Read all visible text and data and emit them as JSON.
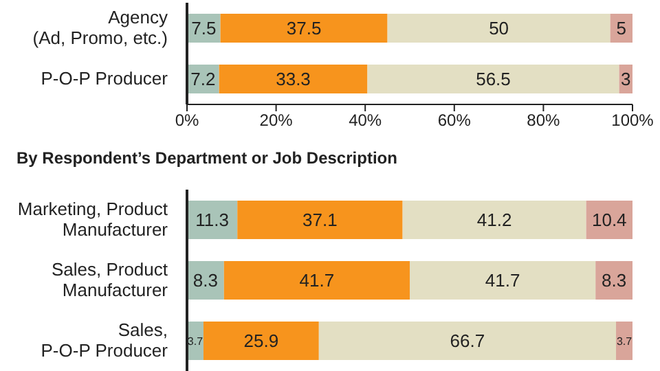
{
  "chart_data": [
    {
      "type": "bar",
      "orientation": "horizontal",
      "stacked": true,
      "data_labels": true,
      "grid": false,
      "legend": false,
      "categories": [
        "Agency\n(Ad, Promo, etc.)",
        "P-O-P Producer"
      ],
      "series": [
        {
          "color": "#a9c4b8",
          "values": [
            7.5,
            7.2
          ]
        },
        {
          "color": "#f7941d",
          "values": [
            37.5,
            33.3
          ]
        },
        {
          "color": "#e3dfc3",
          "values": [
            50,
            56.5
          ]
        },
        {
          "color": "#d9a59a",
          "values": [
            5,
            3
          ]
        }
      ],
      "xlim": [
        0,
        100
      ],
      "xticks": [
        {
          "value": 0,
          "label": "0%"
        },
        {
          "value": 20,
          "label": "20%"
        },
        {
          "value": 40,
          "label": "40%"
        },
        {
          "value": 60,
          "label": "60%"
        },
        {
          "value": 80,
          "label": "80%"
        },
        {
          "value": 100,
          "label": "100%"
        }
      ]
    },
    {
      "type": "bar",
      "orientation": "horizontal",
      "stacked": true,
      "data_labels": true,
      "grid": false,
      "legend": false,
      "tick_labels": "y",
      "title": "By Respondent’s Department or Job Description",
      "categories": [
        "Marketing, Product\nManufacturer",
        "Sales, Product\nManufacturer",
        "Sales,\nP-O-P Producer"
      ],
      "series": [
        {
          "color": "#a9c4b8",
          "values": [
            11.3,
            8.3,
            3.7
          ]
        },
        {
          "color": "#f7941d",
          "values": [
            37.1,
            41.7,
            25.9
          ]
        },
        {
          "color": "#e3dfc3",
          "values": [
            41.2,
            41.7,
            66.7
          ]
        },
        {
          "color": "#d9a59a",
          "values": [
            10.4,
            8.3,
            3.7
          ]
        }
      ],
      "xlim": [
        0,
        100
      ]
    }
  ]
}
